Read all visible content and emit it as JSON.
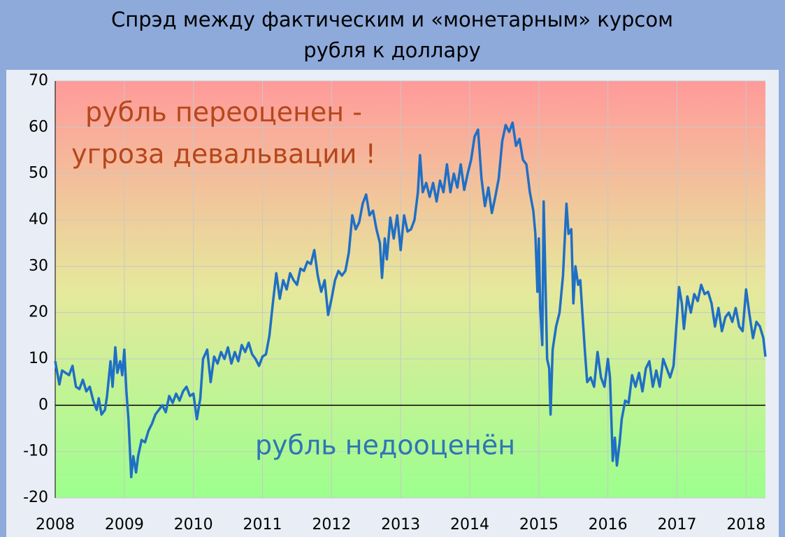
{
  "chart_data": {
    "type": "line",
    "title": [
      "Спрэд между фактическим и «монетарным» курсом",
      "рубля к доллару"
    ],
    "annotations": [
      "рубль переоценен -",
      "угроза девальвации !",
      "рубль недооценён"
    ],
    "color": "#1f6fc5",
    "xlim": [
      2008,
      2018.28
    ],
    "ylim": [
      -20,
      70
    ],
    "xticks": [
      2008,
      2009,
      2010,
      2011,
      2012,
      2013,
      2014,
      2015,
      2016,
      2017,
      2018
    ],
    "yticks": [
      -20,
      -10,
      0,
      10,
      20,
      30,
      40,
      50,
      60,
      70
    ],
    "grid": true,
    "x": [
      2008.0,
      2008.03,
      2008.06,
      2008.1,
      2008.15,
      2008.2,
      2008.25,
      2008.3,
      2008.35,
      2008.4,
      2008.45,
      2008.5,
      2008.55,
      2008.6,
      2008.63,
      2008.67,
      2008.72,
      2008.75,
      2008.8,
      2008.83,
      2008.87,
      2008.9,
      2008.94,
      2008.97,
      2009.0,
      2009.03,
      2009.06,
      2009.1,
      2009.13,
      2009.17,
      2009.2,
      2009.25,
      2009.3,
      2009.35,
      2009.4,
      2009.45,
      2009.5,
      2009.55,
      2009.6,
      2009.65,
      2009.7,
      2009.75,
      2009.8,
      2009.85,
      2009.9,
      2009.95,
      2010.0,
      2010.05,
      2010.1,
      2010.14,
      2010.2,
      2010.25,
      2010.3,
      2010.35,
      2010.4,
      2010.45,
      2010.5,
      2010.55,
      2010.6,
      2010.65,
      2010.7,
      2010.75,
      2010.8,
      2010.85,
      2010.9,
      2010.95,
      2011.0,
      2011.05,
      2011.1,
      2011.15,
      2011.2,
      2011.25,
      2011.3,
      2011.35,
      2011.4,
      2011.45,
      2011.5,
      2011.55,
      2011.6,
      2011.65,
      2011.7,
      2011.75,
      2011.8,
      2011.85,
      2011.9,
      2011.95,
      2012.0,
      2012.05,
      2012.1,
      2012.15,
      2012.2,
      2012.25,
      2012.3,
      2012.35,
      2012.4,
      2012.45,
      2012.5,
      2012.55,
      2012.6,
      2012.65,
      2012.7,
      2012.73,
      2012.77,
      2012.8,
      2012.85,
      2012.9,
      2012.95,
      2013.0,
      2013.05,
      2013.1,
      2013.15,
      2013.2,
      2013.25,
      2013.28,
      2013.32,
      2013.37,
      2013.42,
      2013.47,
      2013.52,
      2013.57,
      2013.62,
      2013.67,
      2013.72,
      2013.77,
      2013.82,
      2013.87,
      2013.92,
      2013.97,
      2014.02,
      2014.07,
      2014.12,
      2014.17,
      2014.22,
      2014.27,
      2014.32,
      2014.37,
      2014.42,
      2014.47,
      2014.52,
      2014.57,
      2014.62,
      2014.67,
      2014.72,
      2014.77,
      2014.82,
      2014.87,
      2014.92,
      2014.95,
      2014.98,
      2015.0,
      2015.02,
      2015.05,
      2015.07,
      2015.1,
      2015.12,
      2015.15,
      2015.17,
      2015.2,
      2015.25,
      2015.3,
      2015.35,
      2015.4,
      2015.43,
      2015.47,
      2015.5,
      2015.53,
      2015.57,
      2015.6,
      2015.63,
      2015.67,
      2015.7,
      2015.75,
      2015.8,
      2015.85,
      2015.9,
      2015.95,
      2016.0,
      2016.03,
      2016.07,
      2016.1,
      2016.13,
      2016.17,
      2016.2,
      2016.25,
      2016.3,
      2016.35,
      2016.4,
      2016.45,
      2016.5,
      2016.55,
      2016.6,
      2016.65,
      2016.7,
      2016.75,
      2016.8,
      2016.85,
      2016.9,
      2016.95,
      2017.0,
      2017.03,
      2017.07,
      2017.1,
      2017.15,
      2017.2,
      2017.25,
      2017.3,
      2017.35,
      2017.4,
      2017.45,
      2017.5,
      2017.55,
      2017.6,
      2017.65,
      2017.7,
      2017.75,
      2017.8,
      2017.85,
      2017.9,
      2017.95,
      2018.0,
      2018.05,
      2018.1,
      2018.15,
      2018.2,
      2018.25,
      2018.28
    ],
    "values": [
      9.5,
      7,
      4.5,
      7.5,
      7,
      6.5,
      8.5,
      4,
      3.5,
      5.5,
      3,
      4,
      1,
      -1,
      1.5,
      -2,
      -1,
      2,
      9.5,
      4,
      12.5,
      7,
      9.5,
      6.5,
      12,
      3,
      -3,
      -15.5,
      -11,
      -14.5,
      -11,
      -7.5,
      -8,
      -5.5,
      -4,
      -2,
      -1,
      0,
      -1.5,
      2,
      0.5,
      2.5,
      1,
      3,
      4,
      2,
      2.5,
      -3,
      1.5,
      10,
      12,
      5,
      10.5,
      9,
      11.5,
      10,
      12.5,
      9,
      11.5,
      9.5,
      13,
      11.5,
      13.5,
      11,
      10,
      8.5,
      10.5,
      11,
      15,
      22,
      28.5,
      23,
      27,
      25,
      28.5,
      27,
      26,
      29.5,
      29,
      31,
      30.5,
      33.5,
      28,
      24.5,
      27,
      19.5,
      23,
      27,
      29,
      28,
      29,
      33,
      41,
      38,
      39.5,
      43.5,
      45.5,
      41,
      42,
      38,
      35,
      27.5,
      36,
      31.5,
      40.5,
      36,
      41,
      33.5,
      41,
      37.5,
      38,
      40,
      46,
      54,
      46,
      48,
      45,
      48,
      44,
      48.5,
      46,
      52,
      46,
      50,
      47,
      52,
      46.5,
      50,
      53,
      58,
      59.5,
      49,
      43,
      47,
      41.5,
      45,
      49,
      57,
      60.5,
      59,
      61,
      56,
      57.5,
      53,
      52,
      46,
      42,
      37,
      24.5,
      36,
      21,
      13,
      44,
      24,
      10,
      8,
      -2,
      12,
      17,
      20,
      28,
      43.5,
      37,
      38,
      22,
      30,
      26,
      27,
      20,
      11,
      5,
      6,
      4,
      11.5,
      6,
      4,
      10,
      6,
      -12,
      -7,
      -13,
      -8,
      -3,
      1,
      0.5,
      6.5,
      4,
      7,
      3,
      8,
      9.5,
      4,
      7.5,
      4,
      10,
      8,
      6,
      8.5,
      19,
      25.5,
      22,
      16.5,
      23.5,
      20,
      24,
      22.5,
      26,
      24,
      24.5,
      22,
      17,
      21,
      16,
      19,
      20,
      18,
      21,
      17,
      16,
      25,
      19.5,
      14.5,
      18,
      17,
      14.5,
      10.5
    ]
  }
}
